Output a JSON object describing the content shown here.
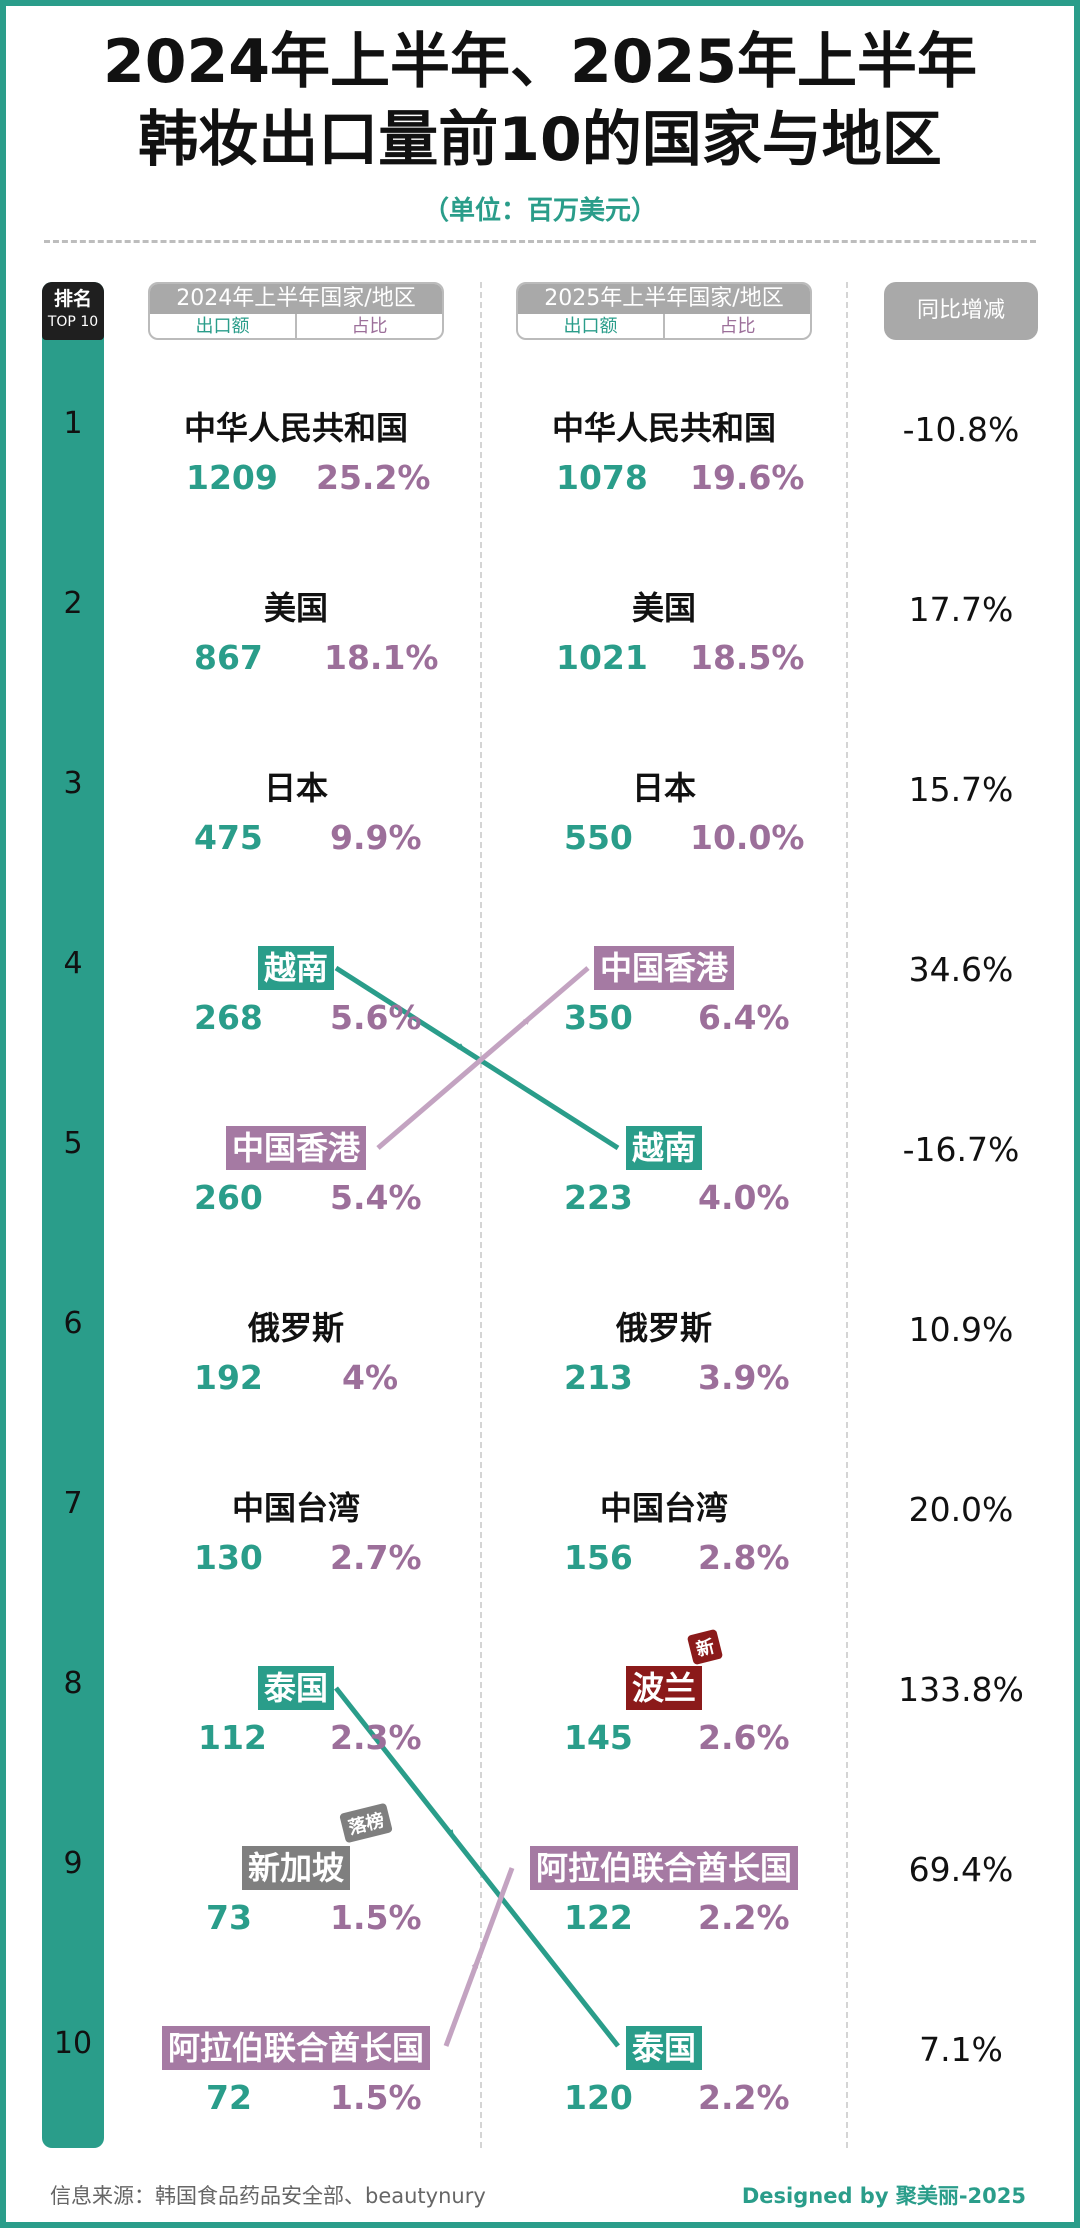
{
  "title_line1": "2024年上半年、2025年上半年",
  "title_line2": "韩妆出口量前10的国家与地区",
  "unit": "（单位：百万美元）",
  "rank_header": {
    "a": "排名",
    "b": "TOP 10"
  },
  "col_2024": {
    "title": "2024年上半年国家/地区",
    "export": "出口额",
    "share": "占比"
  },
  "col_2025": {
    "title": "2025年上半年国家/地区",
    "export": "出口额",
    "share": "占比"
  },
  "change_header": "同比增减",
  "tags": {
    "new": "新",
    "dropped": "落榜"
  },
  "colors": {
    "teal": "#2a9d8a",
    "purple": "#a57aa3",
    "dark_red": "#8b1a1a",
    "gray": "#7f7f7f"
  },
  "footer": {
    "source": "信息来源：韩国食品药品安全部、beautynury",
    "credit": "Designed by 聚美丽-2025"
  },
  "chart_data": {
    "type": "table",
    "title": "韩妆出口量前10的国家与地区",
    "unit": "百万美元",
    "rows": [
      {
        "rank": "1",
        "c2024": "中华人民共和国",
        "v2024": "1209",
        "s2024": "25.2%",
        "c2025": "中华人民共和国",
        "v2025": "1078",
        "s2025": "19.6%",
        "change": "-10.8%"
      },
      {
        "rank": "2",
        "c2024": "美国",
        "v2024": "867",
        "s2024": "18.1%",
        "c2025": "美国",
        "v2025": "1021",
        "s2025": "18.5%",
        "change": "17.7%"
      },
      {
        "rank": "3",
        "c2024": "日本",
        "v2024": "475",
        "s2024": "9.9%",
        "c2025": "日本",
        "v2025": "550",
        "s2025": "10.0%",
        "change": "15.7%"
      },
      {
        "rank": "4",
        "c2024": "越南",
        "v2024": "268",
        "s2024": "5.6%",
        "c2025": "中国香港",
        "v2025": "350",
        "s2025": "6.4%",
        "change": "34.6%"
      },
      {
        "rank": "5",
        "c2024": "中国香港",
        "v2024": "260",
        "s2024": "5.4%",
        "c2025": "越南",
        "v2025": "223",
        "s2025": "4.0%",
        "change": "-16.7%"
      },
      {
        "rank": "6",
        "c2024": "俄罗斯",
        "v2024": "192",
        "s2024": "4%",
        "c2025": "俄罗斯",
        "v2025": "213",
        "s2025": "3.9%",
        "change": "10.9%"
      },
      {
        "rank": "7",
        "c2024": "中国台湾",
        "v2024": "130",
        "s2024": "2.7%",
        "c2025": "中国台湾",
        "v2025": "156",
        "s2025": "2.8%",
        "change": "20.0%"
      },
      {
        "rank": "8",
        "c2024": "泰国",
        "v2024": "112",
        "s2024": "2.3%",
        "c2025": "波兰",
        "v2025": "145",
        "s2025": "2.6%",
        "change": "133.8%"
      },
      {
        "rank": "9",
        "c2024": "新加坡",
        "v2024": "73",
        "s2024": "1.5%",
        "c2025": "阿拉伯联合酋长国",
        "v2025": "122",
        "s2025": "2.2%",
        "change": "69.4%"
      },
      {
        "rank": "10",
        "c2024": "阿拉伯联合酋长国",
        "v2024": "72",
        "s2024": "1.5%",
        "c2025": "泰国",
        "v2025": "120",
        "s2025": "2.2%",
        "change": "7.1%"
      }
    ]
  }
}
